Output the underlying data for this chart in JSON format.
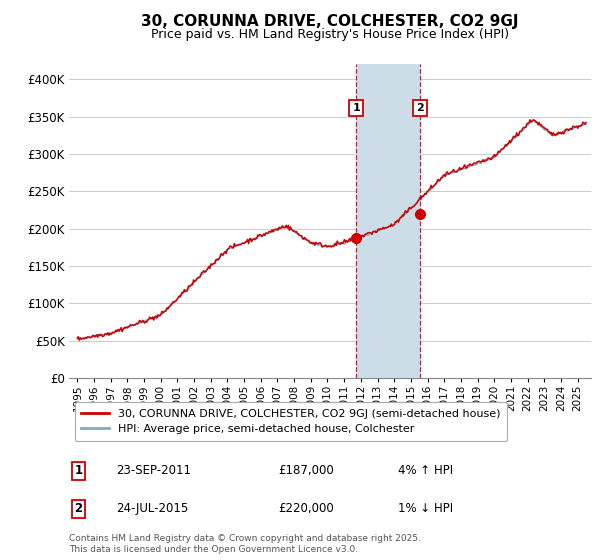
{
  "title": "30, CORUNNA DRIVE, COLCHESTER, CO2 9GJ",
  "subtitle": "Price paid vs. HM Land Registry's House Price Index (HPI)",
  "ylabel_ticks": [
    "£0",
    "£50K",
    "£100K",
    "£150K",
    "£200K",
    "£250K",
    "£300K",
    "£350K",
    "£400K"
  ],
  "ytick_values": [
    0,
    50000,
    100000,
    150000,
    200000,
    250000,
    300000,
    350000,
    400000
  ],
  "ylim": [
    0,
    420000
  ],
  "xlim_start": 1994.5,
  "xlim_end": 2025.8,
  "sale1_x": 2011.73,
  "sale1_y": 187000,
  "sale1_label": "1",
  "sale1_date": "23-SEP-2011",
  "sale1_price": "£187,000",
  "sale1_hpi": "4% ↑ HPI",
  "sale2_x": 2015.56,
  "sale2_y": 220000,
  "sale2_label": "2",
  "sale2_date": "24-JUL-2015",
  "sale2_price": "£220,000",
  "sale2_hpi": "1% ↓ HPI",
  "line_color_red": "#cc0000",
  "line_color_blue": "#7aadcc",
  "shade_color": "#ccdde8",
  "marker_color": "#cc0000",
  "grid_color": "#cccccc",
  "legend_line1": "30, CORUNNA DRIVE, COLCHESTER, CO2 9GJ (semi-detached house)",
  "legend_line2": "HPI: Average price, semi-detached house, Colchester",
  "footer": "Contains HM Land Registry data © Crown copyright and database right 2025.\nThis data is licensed under the Open Government Licence v3.0.",
  "bg_color": "#ffffff",
  "title_fontsize": 11,
  "subtitle_fontsize": 9,
  "xtick_years": [
    1995,
    1996,
    1997,
    1998,
    1999,
    2000,
    2001,
    2002,
    2003,
    2004,
    2005,
    2006,
    2007,
    2008,
    2009,
    2010,
    2011,
    2012,
    2013,
    2014,
    2015,
    2016,
    2017,
    2018,
    2019,
    2020,
    2021,
    2022,
    2023,
    2024,
    2025
  ]
}
